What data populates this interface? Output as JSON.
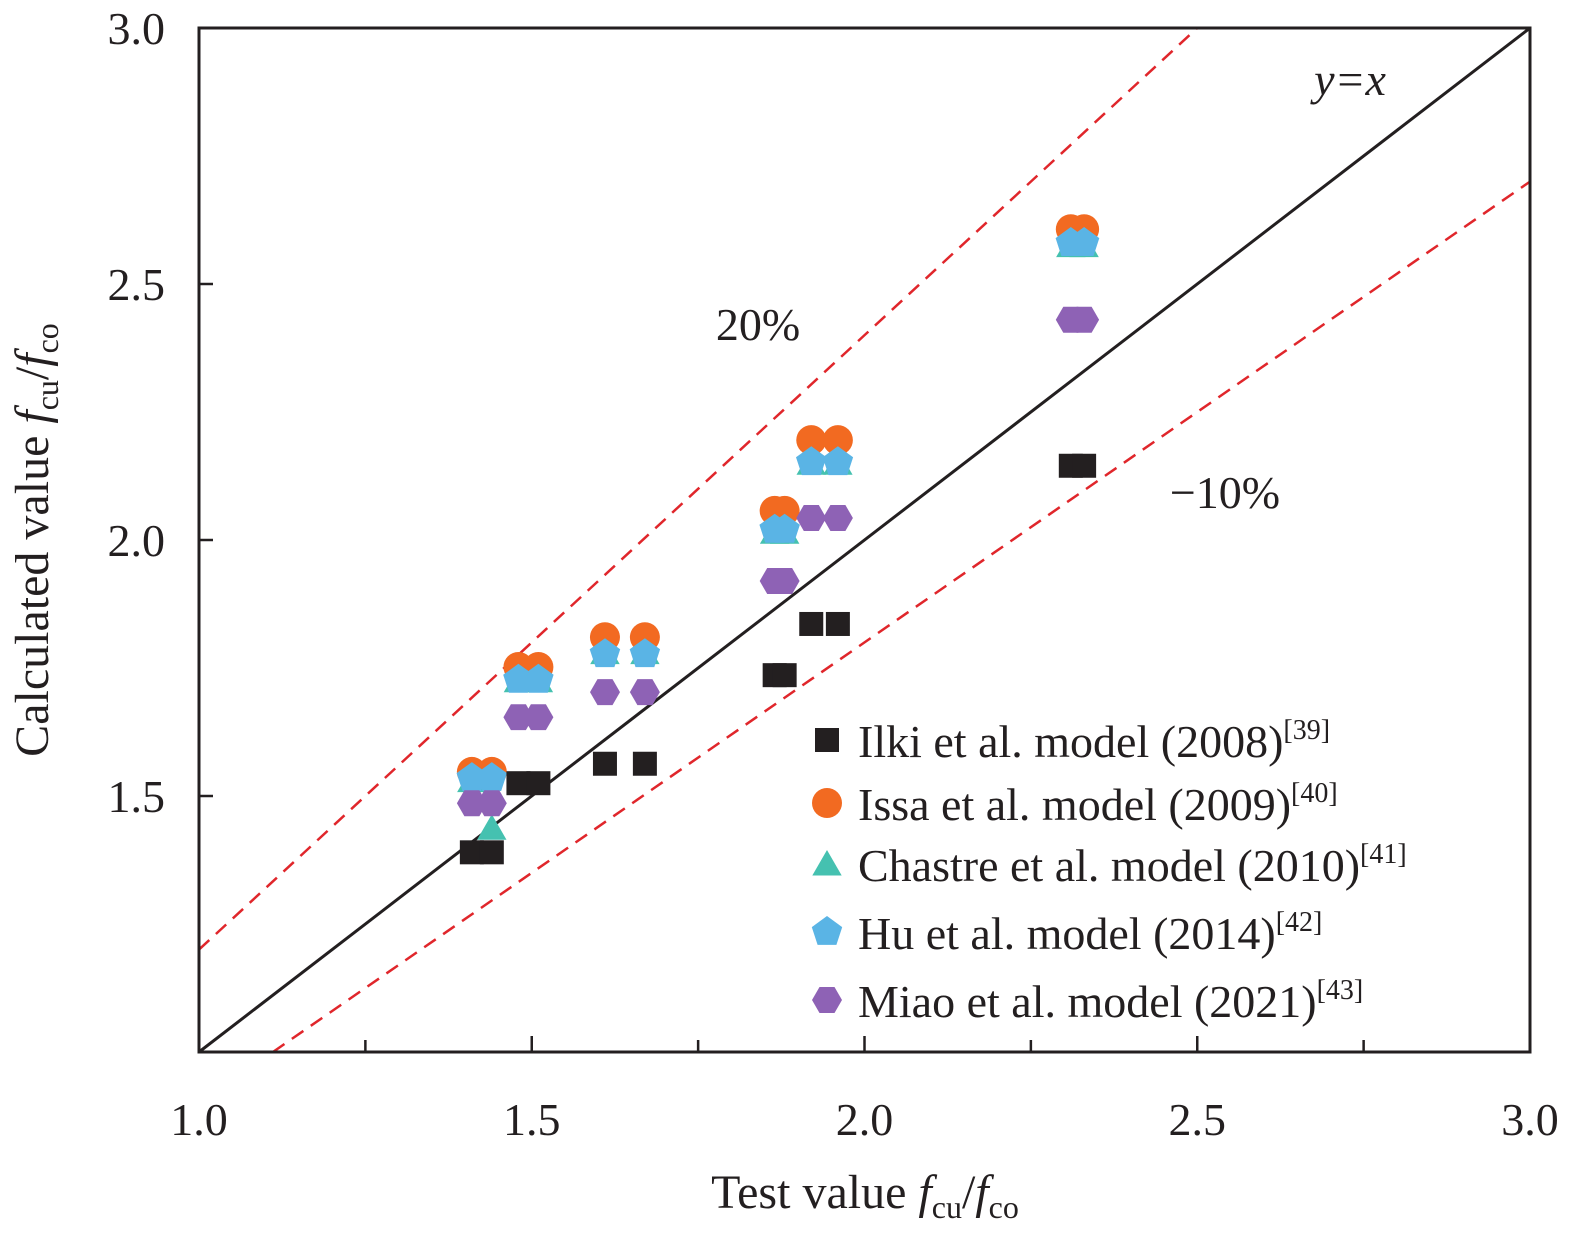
{
  "chart_data": {
    "type": "scatter",
    "title": "",
    "xlabel": {
      "prefix": "Test value ",
      "f1": "f",
      "sub1": "cu",
      "slash": "/",
      "f2": "f",
      "sub2": "co"
    },
    "ylabel": {
      "prefix": "Calculated value ",
      "f1": "f",
      "sub1": "cu",
      "slash": "/",
      "f2": "f",
      "sub2": "co"
    },
    "xlim": [
      1.0,
      3.0
    ],
    "ylim": [
      1.0,
      3.0
    ],
    "xticks": [
      "1.0",
      "1.5",
      "2.0",
      "2.5",
      "3.0"
    ],
    "yticks": [
      "1.5",
      "2.0",
      "2.5",
      "3.0"
    ],
    "grid": false,
    "legend_position": "bottom-right",
    "reference_lines": [
      {
        "label": "y=x",
        "slope": 1.0,
        "color": "#231f20",
        "style": "solid"
      },
      {
        "label": "20%",
        "slope": 1.2,
        "color": "#e0262b",
        "style": "dashed"
      },
      {
        "label": "−10%",
        "slope": 0.9,
        "color": "#e0262b",
        "style": "dashed"
      }
    ],
    "x": [
      1.41,
      1.44,
      1.48,
      1.51,
      1.61,
      1.67,
      1.865,
      1.88,
      1.92,
      1.96,
      2.31,
      2.33
    ],
    "series": [
      {
        "name": "Ilki et al. model (2008)",
        "ref": "[39]",
        "marker": "square",
        "color": "#231f20",
        "values": [
          1.39,
          1.39,
          1.525,
          1.525,
          1.563,
          1.563,
          1.736,
          1.736,
          1.836,
          1.836,
          2.145,
          2.145
        ]
      },
      {
        "name": "Issa et al. model (2009)",
        "ref": "[40]",
        "marker": "circle",
        "color": "#f26a21",
        "values": [
          1.547,
          1.547,
          1.752,
          1.752,
          1.81,
          1.81,
          2.057,
          2.057,
          2.195,
          2.195,
          2.607,
          2.607
        ]
      },
      {
        "name": "Chastre et al. model (2010)",
        "ref": "[41]",
        "marker": "triangle",
        "color": "#45c1b0",
        "values": [
          1.53,
          1.437,
          1.725,
          1.725,
          1.78,
          1.78,
          2.015,
          2.015,
          2.15,
          2.15,
          2.575,
          2.575
        ]
      },
      {
        "name": "Hu et al. model (2014)",
        "ref": "[42]",
        "marker": "pentagon",
        "color": "#5ab4e5",
        "values": [
          1.535,
          1.535,
          1.727,
          1.727,
          1.777,
          1.777,
          2.02,
          2.02,
          2.152,
          2.152,
          2.58,
          2.58
        ]
      },
      {
        "name": "Miao et al. model (2021)",
        "ref": "[43]",
        "marker": "hexagon",
        "color": "#8e62b5",
        "values": [
          1.486,
          1.486,
          1.654,
          1.654,
          1.703,
          1.703,
          1.92,
          1.92,
          2.043,
          2.043,
          2.43,
          2.43
        ]
      }
    ]
  }
}
